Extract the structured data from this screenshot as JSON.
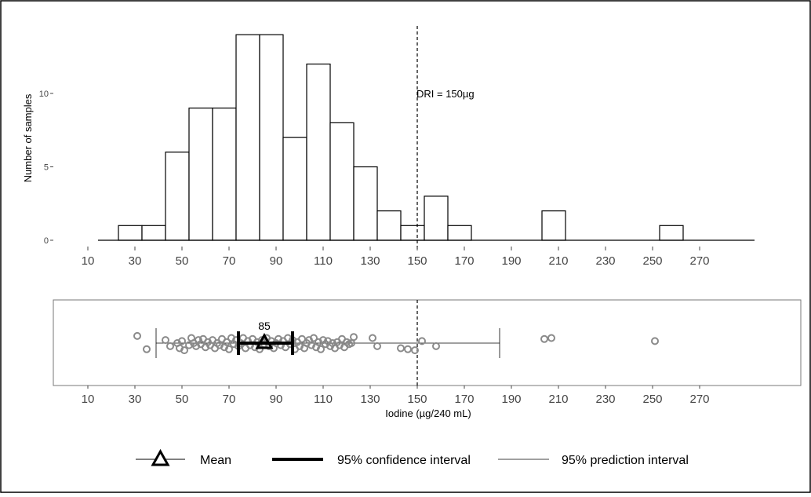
{
  "chart_data": [
    {
      "type": "bar",
      "xlabel": "",
      "ylabel": "Number of samples",
      "bin_width": 10,
      "xlim": [
        10,
        270
      ],
      "ylim": [
        0,
        14
      ],
      "x_ticks": [
        10,
        30,
        50,
        70,
        90,
        110,
        130,
        150,
        170,
        190,
        210,
        230,
        250,
        270
      ],
      "y_ticks": [
        0,
        5,
        10
      ],
      "bins": [
        {
          "start": 23,
          "end": 33,
          "count": 1
        },
        {
          "start": 33,
          "end": 43,
          "count": 1
        },
        {
          "start": 43,
          "end": 53,
          "count": 6
        },
        {
          "start": 53,
          "end": 63,
          "count": 9
        },
        {
          "start": 63,
          "end": 73,
          "count": 9
        },
        {
          "start": 73,
          "end": 83,
          "count": 14
        },
        {
          "start": 83,
          "end": 93,
          "count": 14
        },
        {
          "start": 93,
          "end": 103,
          "count": 7
        },
        {
          "start": 103,
          "end": 113,
          "count": 12
        },
        {
          "start": 113,
          "end": 123,
          "count": 8
        },
        {
          "start": 123,
          "end": 133,
          "count": 5
        },
        {
          "start": 133,
          "end": 143,
          "count": 2
        },
        {
          "start": 143,
          "end": 153,
          "count": 1
        },
        {
          "start": 153,
          "end": 163,
          "count": 3
        },
        {
          "start": 163,
          "end": 173,
          "count": 1
        },
        {
          "start": 203,
          "end": 213,
          "count": 2
        },
        {
          "start": 253,
          "end": 263,
          "count": 1
        }
      ],
      "reference_line": {
        "x": 150,
        "label": "DRI = 150µg",
        "style": "dashed"
      }
    },
    {
      "type": "scatter",
      "xlabel": "Iodine (µg/240 mL)",
      "ylabel": "",
      "xlim": [
        10,
        270
      ],
      "x_ticks": [
        10,
        30,
        50,
        70,
        90,
        110,
        130,
        150,
        170,
        190,
        210,
        230,
        250,
        270
      ],
      "reference_line": {
        "x": 150,
        "style": "dashed"
      },
      "mean": 85,
      "mean_label": "85",
      "confidence_interval": [
        74,
        97
      ],
      "prediction_interval": [
        39,
        185
      ],
      "points": [
        {
          "x": 31,
          "y": 0.7
        },
        {
          "x": 35,
          "y": -0.6
        },
        {
          "x": 43,
          "y": 0.3
        },
        {
          "x": 45,
          "y": -0.3
        },
        {
          "x": 48,
          "y": 0.0
        },
        {
          "x": 49,
          "y": -0.5
        },
        {
          "x": 50,
          "y": 0.2
        },
        {
          "x": 51,
          "y": -0.7
        },
        {
          "x": 53,
          "y": -0.2
        },
        {
          "x": 54,
          "y": 0.5
        },
        {
          "x": 55,
          "y": 0.0
        },
        {
          "x": 56,
          "y": -0.3
        },
        {
          "x": 57,
          "y": 0.3
        },
        {
          "x": 58,
          "y": -0.1
        },
        {
          "x": 59,
          "y": 0.4
        },
        {
          "x": 60,
          "y": -0.4
        },
        {
          "x": 61,
          "y": 0.1
        },
        {
          "x": 62,
          "y": -0.2
        },
        {
          "x": 63,
          "y": 0.3
        },
        {
          "x": 64,
          "y": -0.5
        },
        {
          "x": 65,
          "y": 0.0
        },
        {
          "x": 66,
          "y": -0.2
        },
        {
          "x": 67,
          "y": 0.4
        },
        {
          "x": 68,
          "y": -0.4
        },
        {
          "x": 69,
          "y": 0.1
        },
        {
          "x": 70,
          "y": -0.6
        },
        {
          "x": 71,
          "y": 0.5
        },
        {
          "x": 72,
          "y": -0.1
        },
        {
          "x": 73,
          "y": 0.3
        },
        {
          "x": 74,
          "y": -0.3
        },
        {
          "x": 75,
          "y": 0.0
        },
        {
          "x": 76,
          "y": 0.5
        },
        {
          "x": 77,
          "y": -0.5
        },
        {
          "x": 78,
          "y": 0.2
        },
        {
          "x": 79,
          "y": -0.2
        },
        {
          "x": 80,
          "y": 0.4
        },
        {
          "x": 81,
          "y": -0.4
        },
        {
          "x": 82,
          "y": 0.1
        },
        {
          "x": 83,
          "y": -0.6
        },
        {
          "x": 84,
          "y": 0.3
        },
        {
          "x": 85,
          "y": -0.1
        },
        {
          "x": 86,
          "y": 0.5
        },
        {
          "x": 87,
          "y": -0.3
        },
        {
          "x": 88,
          "y": 0.2
        },
        {
          "x": 89,
          "y": -0.5
        },
        {
          "x": 90,
          "y": 0.0
        },
        {
          "x": 91,
          "y": 0.4
        },
        {
          "x": 92,
          "y": -0.2
        },
        {
          "x": 93,
          "y": 0.2
        },
        {
          "x": 94,
          "y": -0.4
        },
        {
          "x": 95,
          "y": 0.5
        },
        {
          "x": 96,
          "y": -0.1
        },
        {
          "x": 97,
          "y": 0.3
        },
        {
          "x": 98,
          "y": -0.6
        },
        {
          "x": 99,
          "y": 0.1
        },
        {
          "x": 100,
          "y": -0.3
        },
        {
          "x": 101,
          "y": 0.4
        },
        {
          "x": 102,
          "y": -0.5
        },
        {
          "x": 103,
          "y": 0.0
        },
        {
          "x": 104,
          "y": 0.3
        },
        {
          "x": 105,
          "y": -0.2
        },
        {
          "x": 106,
          "y": 0.5
        },
        {
          "x": 107,
          "y": -0.4
        },
        {
          "x": 108,
          "y": 0.1
        },
        {
          "x": 109,
          "y": -0.6
        },
        {
          "x": 110,
          "y": 0.3
        },
        {
          "x": 111,
          "y": -0.1
        },
        {
          "x": 112,
          "y": 0.2
        },
        {
          "x": 113,
          "y": -0.3
        },
        {
          "x": 114,
          "y": 0.0
        },
        {
          "x": 115,
          "y": -0.5
        },
        {
          "x": 116,
          "y": 0.1
        },
        {
          "x": 117,
          "y": -0.2
        },
        {
          "x": 118,
          "y": 0.4
        },
        {
          "x": 119,
          "y": -0.4
        },
        {
          "x": 120,
          "y": 0.1
        },
        {
          "x": 121,
          "y": -0.1
        },
        {
          "x": 122,
          "y": 0.0
        },
        {
          "x": 123,
          "y": 0.6
        },
        {
          "x": 131,
          "y": 0.5
        },
        {
          "x": 133,
          "y": -0.3
        },
        {
          "x": 143,
          "y": -0.5
        },
        {
          "x": 146,
          "y": -0.6
        },
        {
          "x": 149,
          "y": -0.7
        },
        {
          "x": 152,
          "y": 0.2
        },
        {
          "x": 158,
          "y": -0.3
        },
        {
          "x": 204,
          "y": 0.4
        },
        {
          "x": 207,
          "y": 0.5
        },
        {
          "x": 251,
          "y": 0.2
        }
      ]
    }
  ],
  "legend": {
    "mean": "Mean",
    "ci": "95% confidence interval",
    "pi": "95% prediction interval"
  }
}
